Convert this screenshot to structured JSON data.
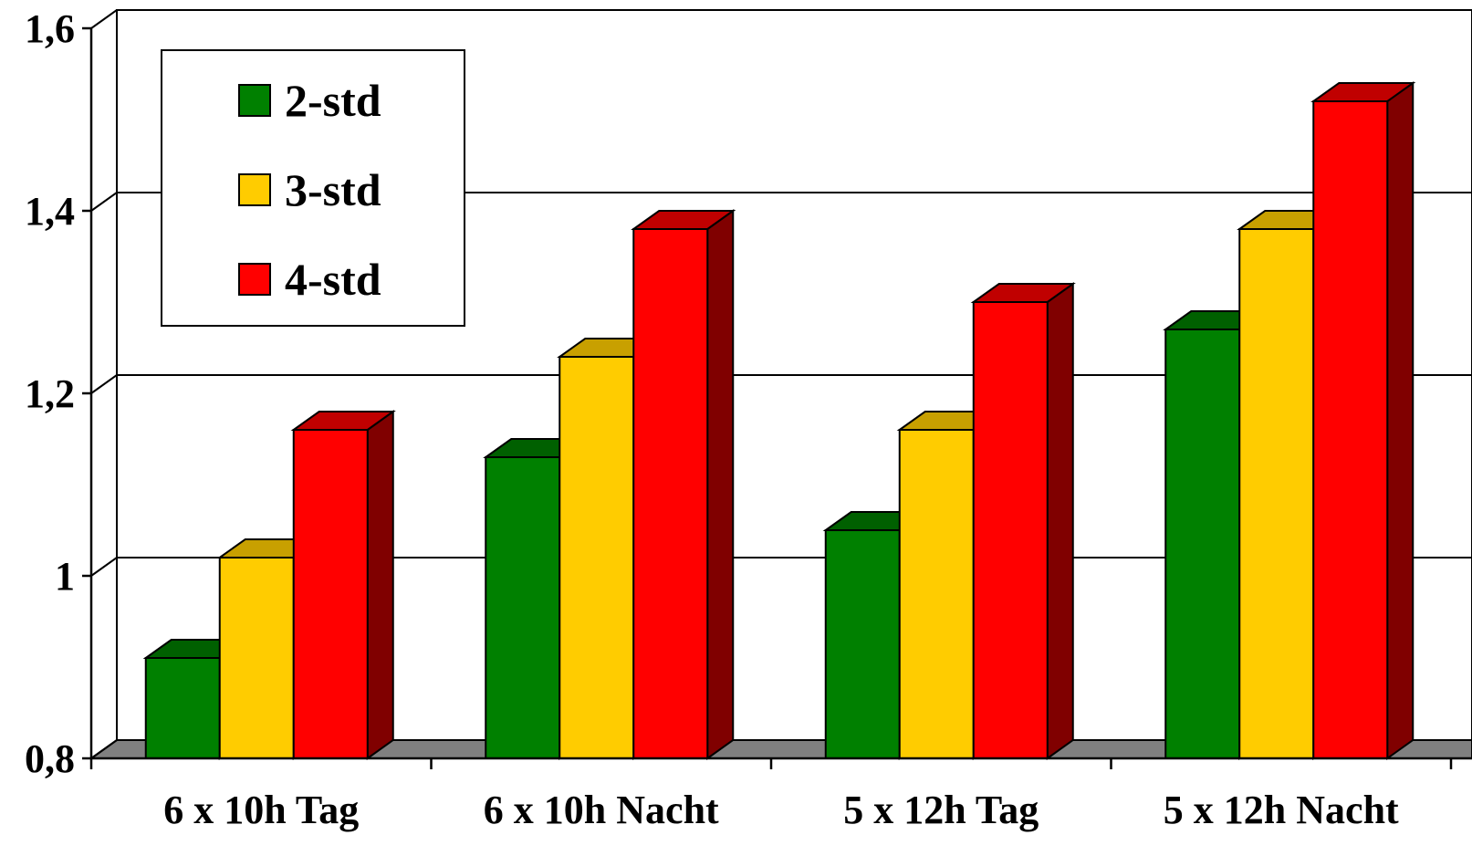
{
  "chart_data": {
    "type": "bar",
    "style": "3d-clustered",
    "categories": [
      "6 x 10h Tag",
      "6 x 10h Nacht",
      "5 x 12h Tag",
      "5 x 12h Nacht"
    ],
    "series": [
      {
        "name": "2-std",
        "values": [
          0.91,
          1.13,
          1.05,
          1.27
        ],
        "color": "#008000",
        "top": "#006000",
        "side": "#004000"
      },
      {
        "name": "3-std",
        "values": [
          1.02,
          1.24,
          1.16,
          1.38
        ],
        "color": "#ffcc00",
        "top": "#c8a000",
        "side": "#8a6f00"
      },
      {
        "name": "4-std",
        "values": [
          1.16,
          1.38,
          1.3,
          1.52
        ],
        "color": "#ff0000",
        "top": "#c00000",
        "side": "#800000"
      }
    ],
    "yticks": [
      "0,8",
      "1",
      "1,2",
      "1,4",
      "1,6"
    ],
    "ylim": [
      0.8,
      1.6
    ],
    "title": "",
    "xlabel": "",
    "ylabel": "",
    "grid": true,
    "legend": "top-left"
  }
}
